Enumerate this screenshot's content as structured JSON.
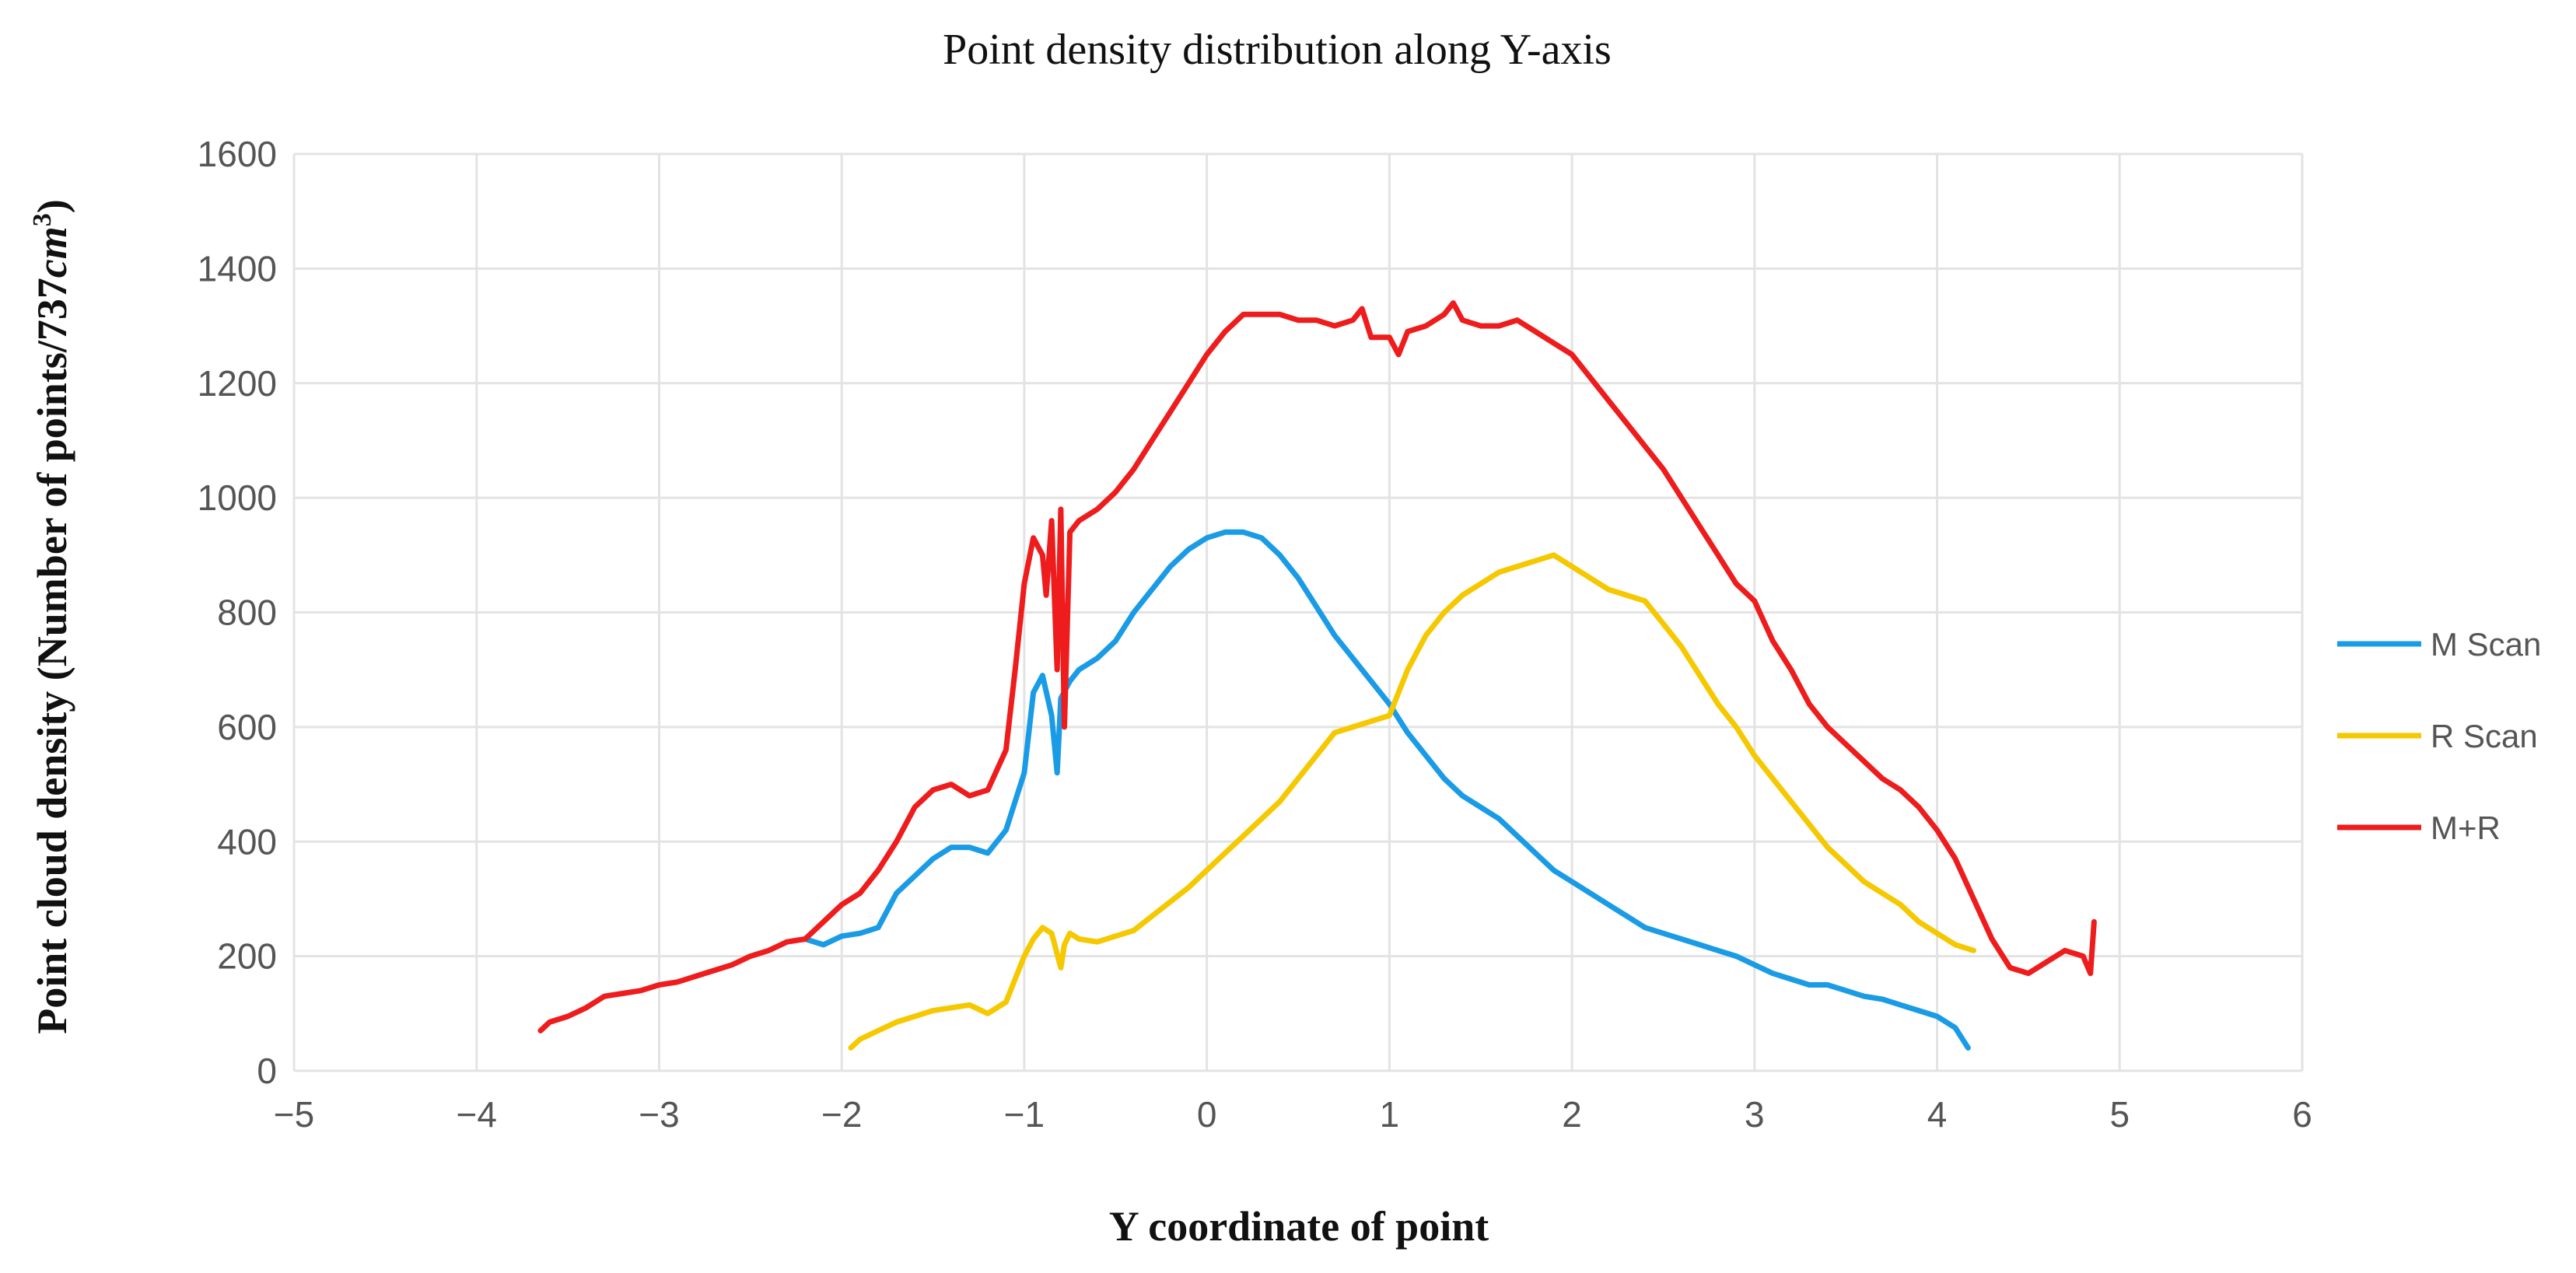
{
  "chart_data": {
    "type": "line",
    "title": "Point density distribution along Y-axis",
    "xlabel": "Y coordinate of point",
    "ylabel": "Point cloud density (Number of points/737cm³)",
    "ylabel_parts": {
      "main": "Point cloud density (Number of points/737",
      "unit": "cm",
      "exponent": "3",
      "close": ")"
    },
    "xlim": [
      -5,
      6
    ],
    "ylim": [
      0,
      1600
    ],
    "x_ticks": [
      "−5",
      "−4",
      "−3",
      "−2",
      "−1",
      "0",
      "1",
      "2",
      "3",
      "4",
      "5",
      "6"
    ],
    "x_tick_values": [
      -5,
      -4,
      -3,
      -2,
      -1,
      0,
      1,
      2,
      3,
      4,
      5,
      6
    ],
    "y_ticks": [
      "0",
      "200",
      "400",
      "600",
      "800",
      "1000",
      "1200",
      "1400",
      "1600"
    ],
    "y_tick_values": [
      0,
      200,
      400,
      600,
      800,
      1000,
      1200,
      1400,
      1600
    ],
    "grid": true,
    "legend_position": "right",
    "series": [
      {
        "name": "M Scan",
        "color": "#1a9be6",
        "x": [
          -2.2,
          -2.1,
          -2.0,
          -1.9,
          -1.8,
          -1.7,
          -1.6,
          -1.5,
          -1.4,
          -1.3,
          -1.2,
          -1.1,
          -1.0,
          -0.95,
          -0.9,
          -0.85,
          -0.82,
          -0.8,
          -0.75,
          -0.7,
          -0.6,
          -0.5,
          -0.4,
          -0.3,
          -0.2,
          -0.1,
          0.0,
          0.1,
          0.2,
          0.3,
          0.4,
          0.5,
          0.6,
          0.7,
          0.8,
          0.9,
          1.0,
          1.1,
          1.2,
          1.3,
          1.4,
          1.5,
          1.6,
          1.7,
          1.8,
          1.9,
          2.0,
          2.1,
          2.2,
          2.3,
          2.4,
          2.5,
          2.6,
          2.7,
          2.8,
          2.9,
          3.0,
          3.1,
          3.2,
          3.3,
          3.4,
          3.5,
          3.6,
          3.7,
          3.8,
          3.9,
          4.0,
          4.1,
          4.17
        ],
        "y": [
          230,
          220,
          235,
          240,
          250,
          310,
          340,
          370,
          390,
          390,
          380,
          420,
          520,
          660,
          690,
          620,
          520,
          650,
          680,
          700,
          720,
          750,
          800,
          840,
          880,
          910,
          930,
          940,
          940,
          930,
          900,
          860,
          810,
          760,
          720,
          680,
          640,
          590,
          550,
          510,
          480,
          460,
          440,
          410,
          380,
          350,
          330,
          310,
          290,
          270,
          250,
          240,
          230,
          220,
          210,
          200,
          185,
          170,
          160,
          150,
          150,
          140,
          130,
          125,
          115,
          105,
          95,
          75,
          40
        ]
      },
      {
        "name": "R Scan",
        "color": "#f5c800",
        "x": [
          -1.95,
          -1.9,
          -1.8,
          -1.7,
          -1.6,
          -1.5,
          -1.4,
          -1.3,
          -1.2,
          -1.1,
          -1.0,
          -0.95,
          -0.9,
          -0.85,
          -0.8,
          -0.78,
          -0.75,
          -0.7,
          -0.6,
          -0.5,
          -0.4,
          -0.3,
          -0.2,
          -0.1,
          0.0,
          0.1,
          0.2,
          0.3,
          0.4,
          0.5,
          0.6,
          0.7,
          0.8,
          0.9,
          1.0,
          1.1,
          1.2,
          1.3,
          1.4,
          1.5,
          1.6,
          1.7,
          1.8,
          1.9,
          2.0,
          2.1,
          2.2,
          2.3,
          2.4,
          2.5,
          2.6,
          2.7,
          2.8,
          2.9,
          3.0,
          3.1,
          3.2,
          3.3,
          3.4,
          3.5,
          3.6,
          3.7,
          3.8,
          3.9,
          4.0,
          4.1,
          4.2
        ],
        "y": [
          40,
          55,
          70,
          85,
          95,
          105,
          110,
          115,
          100,
          120,
          200,
          230,
          250,
          240,
          180,
          220,
          240,
          230,
          225,
          235,
          245,
          270,
          295,
          320,
          350,
          380,
          410,
          440,
          470,
          510,
          550,
          590,
          600,
          610,
          620,
          700,
          760,
          800,
          830,
          850,
          870,
          880,
          890,
          900,
          880,
          860,
          840,
          830,
          820,
          780,
          740,
          690,
          640,
          600,
          550,
          510,
          470,
          430,
          390,
          360,
          330,
          310,
          290,
          260,
          240,
          220,
          210
        ]
      },
      {
        "name": "M+R",
        "color": "#ee1c1c",
        "x": [
          -3.65,
          -3.6,
          -3.5,
          -3.4,
          -3.3,
          -3.2,
          -3.1,
          -3.0,
          -2.9,
          -2.8,
          -2.7,
          -2.6,
          -2.5,
          -2.4,
          -2.3,
          -2.2,
          -2.1,
          -2.0,
          -1.9,
          -1.8,
          -1.7,
          -1.6,
          -1.5,
          -1.4,
          -1.3,
          -1.2,
          -1.1,
          -1.05,
          -1.0,
          -0.95,
          -0.9,
          -0.88,
          -0.85,
          -0.82,
          -0.8,
          -0.78,
          -0.75,
          -0.7,
          -0.6,
          -0.5,
          -0.4,
          -0.3,
          -0.2,
          -0.1,
          0.0,
          0.1,
          0.2,
          0.3,
          0.4,
          0.5,
          0.6,
          0.7,
          0.8,
          0.85,
          0.9,
          1.0,
          1.05,
          1.1,
          1.2,
          1.3,
          1.35,
          1.4,
          1.5,
          1.6,
          1.7,
          1.8,
          1.9,
          2.0,
          2.1,
          2.2,
          2.3,
          2.4,
          2.5,
          2.6,
          2.7,
          2.8,
          2.9,
          3.0,
          3.1,
          3.2,
          3.3,
          3.4,
          3.5,
          3.6,
          3.7,
          3.8,
          3.9,
          4.0,
          4.1,
          4.2,
          4.3,
          4.4,
          4.5,
          4.6,
          4.7,
          4.8,
          4.84,
          4.86
        ],
        "y": [
          70,
          85,
          95,
          110,
          130,
          135,
          140,
          150,
          155,
          165,
          175,
          185,
          200,
          210,
          225,
          230,
          260,
          290,
          310,
          350,
          400,
          460,
          490,
          500,
          480,
          490,
          560,
          700,
          850,
          930,
          900,
          830,
          960,
          700,
          980,
          600,
          940,
          960,
          980,
          1010,
          1050,
          1100,
          1150,
          1200,
          1250,
          1290,
          1320,
          1320,
          1320,
          1310,
          1310,
          1300,
          1310,
          1330,
          1280,
          1280,
          1250,
          1290,
          1300,
          1320,
          1340,
          1310,
          1300,
          1300,
          1310,
          1290,
          1270,
          1250,
          1210,
          1170,
          1130,
          1090,
          1050,
          1000,
          950,
          900,
          850,
          820,
          750,
          700,
          640,
          600,
          570,
          540,
          510,
          490,
          460,
          420,
          370,
          300,
          230,
          180,
          170,
          190,
          210,
          200,
          170,
          260
        ]
      }
    ]
  },
  "legend": [
    {
      "label": "M Scan",
      "color": "#1a9be6"
    },
    {
      "label": "R Scan",
      "color": "#f5c800"
    },
    {
      "label": "M+R",
      "color": "#ee1c1c"
    }
  ]
}
